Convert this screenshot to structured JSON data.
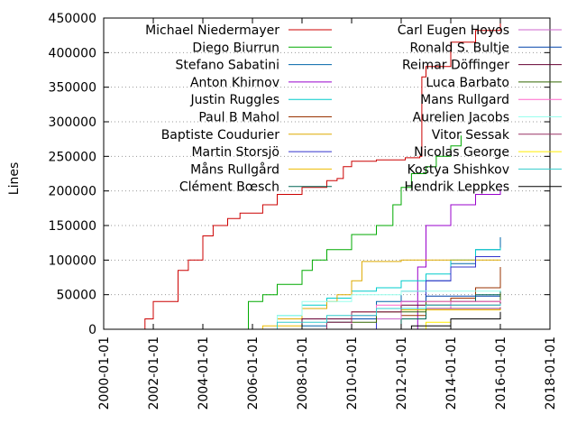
{
  "chart_data": {
    "type": "line",
    "xlabel": "",
    "ylabel": "Lines",
    "ylim": [
      0,
      450000
    ],
    "yticks": [
      0,
      50000,
      100000,
      150000,
      200000,
      250000,
      300000,
      350000,
      400000,
      450000
    ],
    "xlim": [
      "2000-01-01",
      "2018-01-01"
    ],
    "xticks": [
      "2000-01-01",
      "2002-01-01",
      "2004-01-01",
      "2006-01-01",
      "2008-01-01",
      "2010-01-01",
      "2012-01-01",
      "2014-01-01",
      "2016-01-01",
      "2018-01-01"
    ],
    "grid": "horizontal dotted",
    "legend_position": "top",
    "series": [
      {
        "name": "Michael Niedermayer",
        "color": "#cc0000",
        "points": [
          [
            "2001-08-01",
            0
          ],
          [
            "2001-09-01",
            15000
          ],
          [
            "2002-01-01",
            40000
          ],
          [
            "2003-01-01",
            85000
          ],
          [
            "2003-06-01",
            100000
          ],
          [
            "2004-01-01",
            135000
          ],
          [
            "2004-06-01",
            150000
          ],
          [
            "2005-01-01",
            160000
          ],
          [
            "2005-07-01",
            168000
          ],
          [
            "2006-06-01",
            180000
          ],
          [
            "2007-01-01",
            195000
          ],
          [
            "2008-01-01",
            205000
          ],
          [
            "2009-01-01",
            215000
          ],
          [
            "2009-06-01",
            218000
          ],
          [
            "2009-09-01",
            235000
          ],
          [
            "2010-01-01",
            243000
          ],
          [
            "2011-01-01",
            245000
          ],
          [
            "2012-03-01",
            248000
          ],
          [
            "2012-10-01",
            250000
          ],
          [
            "2012-11-01",
            365000
          ],
          [
            "2013-01-01",
            380000
          ],
          [
            "2014-01-01",
            415000
          ],
          [
            "2015-01-01",
            432000
          ],
          [
            "2016-01-01",
            447000
          ]
        ]
      },
      {
        "name": "Diego Biurrun",
        "color": "#00aa00",
        "points": [
          [
            "2005-11-01",
            0
          ],
          [
            "2005-11-02",
            40000
          ],
          [
            "2006-06-01",
            50000
          ],
          [
            "2007-01-01",
            65000
          ],
          [
            "2008-01-01",
            85000
          ],
          [
            "2008-06-01",
            100000
          ],
          [
            "2009-01-01",
            115000
          ],
          [
            "2010-01-01",
            137000
          ],
          [
            "2011-01-01",
            150000
          ],
          [
            "2011-09-01",
            180000
          ],
          [
            "2012-01-01",
            205000
          ],
          [
            "2012-06-01",
            225000
          ],
          [
            "2013-01-01",
            235000
          ],
          [
            "2013-06-01",
            250000
          ],
          [
            "2014-01-01",
            265000
          ],
          [
            "2014-06-01",
            280000
          ]
        ]
      },
      {
        "name": "Stefano Sabatini",
        "color": "#0066aa",
        "points": [
          [
            "2007-01-01",
            0
          ],
          [
            "2008-01-01",
            5000
          ],
          [
            "2009-01-01",
            10000
          ],
          [
            "2010-01-01",
            20000
          ],
          [
            "2011-01-01",
            40000
          ],
          [
            "2012-01-01",
            55000
          ],
          [
            "2013-01-01",
            70000
          ],
          [
            "2014-01-01",
            95000
          ],
          [
            "2015-01-01",
            115000
          ],
          [
            "2016-01-01",
            133000
          ]
        ]
      },
      {
        "name": "Anton Khirnov",
        "color": "#9900cc",
        "points": [
          [
            "2012-05-01",
            0
          ],
          [
            "2012-09-01",
            90000
          ],
          [
            "2013-01-01",
            150000
          ],
          [
            "2014-01-01",
            180000
          ],
          [
            "2015-01-01",
            195000
          ],
          [
            "2016-01-01",
            203000
          ]
        ]
      },
      {
        "name": "Justin Ruggles",
        "color": "#00cccc",
        "points": [
          [
            "2006-01-01",
            0
          ],
          [
            "2007-01-01",
            20000
          ],
          [
            "2008-01-01",
            35000
          ],
          [
            "2009-01-01",
            45000
          ],
          [
            "2010-01-01",
            55000
          ],
          [
            "2011-01-01",
            60000
          ],
          [
            "2012-01-01",
            70000
          ],
          [
            "2013-01-01",
            80000
          ],
          [
            "2014-01-01",
            100000
          ],
          [
            "2015-01-01",
            115000
          ],
          [
            "2016-01-01",
            118000
          ]
        ]
      },
      {
        "name": "Paul B Mahol",
        "color": "#993300",
        "points": [
          [
            "2011-09-01",
            0
          ],
          [
            "2012-01-01",
            20000
          ],
          [
            "2013-01-01",
            35000
          ],
          [
            "2014-01-01",
            45000
          ],
          [
            "2015-01-01",
            60000
          ],
          [
            "2016-01-01",
            90000
          ]
        ]
      },
      {
        "name": "Baptiste Coudurier",
        "color": "#ddaa00",
        "points": [
          [
            "2006-01-01",
            0
          ],
          [
            "2007-01-01",
            15000
          ],
          [
            "2008-01-01",
            30000
          ],
          [
            "2009-01-01",
            40000
          ],
          [
            "2009-06-01",
            50000
          ],
          [
            "2010-01-01",
            70000
          ],
          [
            "2010-06-01",
            98000
          ],
          [
            "2012-01-01",
            100000
          ],
          [
            "2016-01-01",
            100000
          ]
        ]
      },
      {
        "name": "Martin Storsjö",
        "color": "#3333cc",
        "points": [
          [
            "2010-01-01",
            0
          ],
          [
            "2011-01-01",
            15000
          ],
          [
            "2012-01-01",
            40000
          ],
          [
            "2013-01-01",
            70000
          ],
          [
            "2014-01-01",
            90000
          ],
          [
            "2015-01-01",
            105000
          ],
          [
            "2016-01-01",
            105000
          ]
        ]
      },
      {
        "name": "Måns Rullgård",
        "color": "#eebb00",
        "points": [
          [
            "2005-06-01",
            0
          ],
          [
            "2006-06-01",
            5000
          ],
          [
            "2008-01-01",
            15000
          ],
          [
            "2010-01-01",
            25000
          ],
          [
            "2012-01-01",
            28000
          ],
          [
            "2016-01-01",
            30000
          ]
        ]
      },
      {
        "name": "Clément Bœsch",
        "color": "#006655",
        "points": [
          [
            "2011-01-01",
            0
          ],
          [
            "2012-01-01",
            15000
          ],
          [
            "2013-01-01",
            30000
          ],
          [
            "2014-01-01",
            40000
          ],
          [
            "2015-01-01",
            50000
          ],
          [
            "2016-01-01",
            55000
          ]
        ]
      },
      {
        "name": "Carl Eugen Hoyos",
        "color": "#cc66cc",
        "points": [
          [
            "2008-01-01",
            0
          ],
          [
            "2010-01-01",
            15000
          ],
          [
            "2012-01-01",
            30000
          ],
          [
            "2014-01-01",
            40000
          ],
          [
            "2016-01-01",
            45000
          ]
        ]
      },
      {
        "name": "Ronald S. Bultje",
        "color": "#0044aa",
        "points": [
          [
            "2009-01-01",
            0
          ],
          [
            "2010-01-01",
            15000
          ],
          [
            "2011-01-01",
            30000
          ],
          [
            "2012-01-01",
            40000
          ],
          [
            "2013-01-01",
            48000
          ],
          [
            "2016-01-01",
            50000
          ]
        ]
      },
      {
        "name": "Reimar Döffinger",
        "color": "#660033",
        "points": [
          [
            "2006-01-01",
            0
          ],
          [
            "2008-01-01",
            15000
          ],
          [
            "2010-01-01",
            25000
          ],
          [
            "2012-01-01",
            35000
          ],
          [
            "2016-01-01",
            40000
          ]
        ]
      },
      {
        "name": "Luca Barbato",
        "color": "#336600",
        "points": [
          [
            "2007-01-01",
            0
          ],
          [
            "2009-01-01",
            10000
          ],
          [
            "2011-01-01",
            25000
          ],
          [
            "2013-01-01",
            40000
          ],
          [
            "2016-01-01",
            52000
          ]
        ]
      },
      {
        "name": "Mans Rullgard",
        "color": "#ff66cc",
        "points": [
          [
            "2009-01-01",
            0
          ],
          [
            "2010-01-01",
            20000
          ],
          [
            "2011-01-01",
            35000
          ],
          [
            "2012-01-01",
            40000
          ],
          [
            "2016-01-01",
            42000
          ]
        ]
      },
      {
        "name": "Aurelien Jacobs",
        "color": "#99ffee",
        "points": [
          [
            "2006-01-01",
            0
          ],
          [
            "2007-01-01",
            20000
          ],
          [
            "2008-01-01",
            40000
          ],
          [
            "2010-01-01",
            50000
          ],
          [
            "2012-01-01",
            55000
          ],
          [
            "2016-01-01",
            57000
          ]
        ]
      },
      {
        "name": "Vitor Sessak",
        "color": "#993366",
        "points": [
          [
            "2008-01-01",
            0
          ],
          [
            "2009-01-01",
            10000
          ],
          [
            "2010-01-01",
            25000
          ],
          [
            "2012-01-01",
            30000
          ],
          [
            "2016-01-01",
            32000
          ]
        ]
      },
      {
        "name": "Nicolas George",
        "color": "#ffee00",
        "points": [
          [
            "2012-06-01",
            0
          ],
          [
            "2013-01-01",
            10000
          ],
          [
            "2014-01-01",
            15000
          ],
          [
            "2016-01-01",
            20000
          ]
        ]
      },
      {
        "name": "Kostya Shishkov",
        "color": "#33cccc",
        "points": [
          [
            "2006-01-01",
            0
          ],
          [
            "2007-01-01",
            10000
          ],
          [
            "2009-01-01",
            20000
          ],
          [
            "2011-01-01",
            30000
          ],
          [
            "2013-01-01",
            35000
          ],
          [
            "2016-01-01",
            37000
          ]
        ]
      },
      {
        "name": "Hendrik Leppkes",
        "color": "#000000",
        "points": [
          [
            "2011-01-01",
            0
          ],
          [
            "2012-06-01",
            5000
          ],
          [
            "2014-01-01",
            15000
          ],
          [
            "2016-01-01",
            25000
          ]
        ]
      }
    ]
  }
}
